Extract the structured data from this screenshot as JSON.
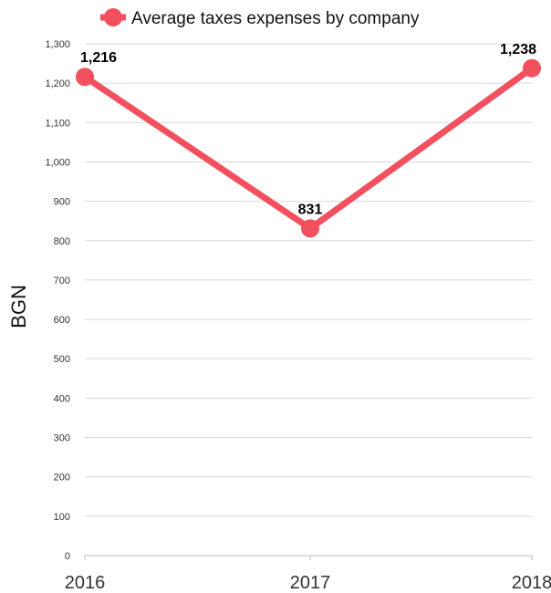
{
  "chart_data": {
    "type": "line",
    "categories": [
      "2016",
      "2017",
      "2018"
    ],
    "series": [
      {
        "name": "Average taxes expenses by company",
        "values": [
          1216,
          831,
          1238
        ],
        "data_labels": [
          "1,216",
          "831",
          "1,238"
        ],
        "color": "#f2505e"
      }
    ],
    "ylabel": "BGN",
    "xlabel": "",
    "ylim": [
      0,
      1300
    ],
    "yticks": [
      0,
      100,
      200,
      300,
      400,
      500,
      600,
      700,
      800,
      900,
      1000,
      1100,
      1200,
      1300
    ],
    "ytick_labels": [
      "0",
      "100",
      "200",
      "300",
      "400",
      "500",
      "600",
      "700",
      "800",
      "900",
      "1,000",
      "1,100",
      "1,200",
      "1,300"
    ],
    "grid": true,
    "legend_position": "top"
  }
}
